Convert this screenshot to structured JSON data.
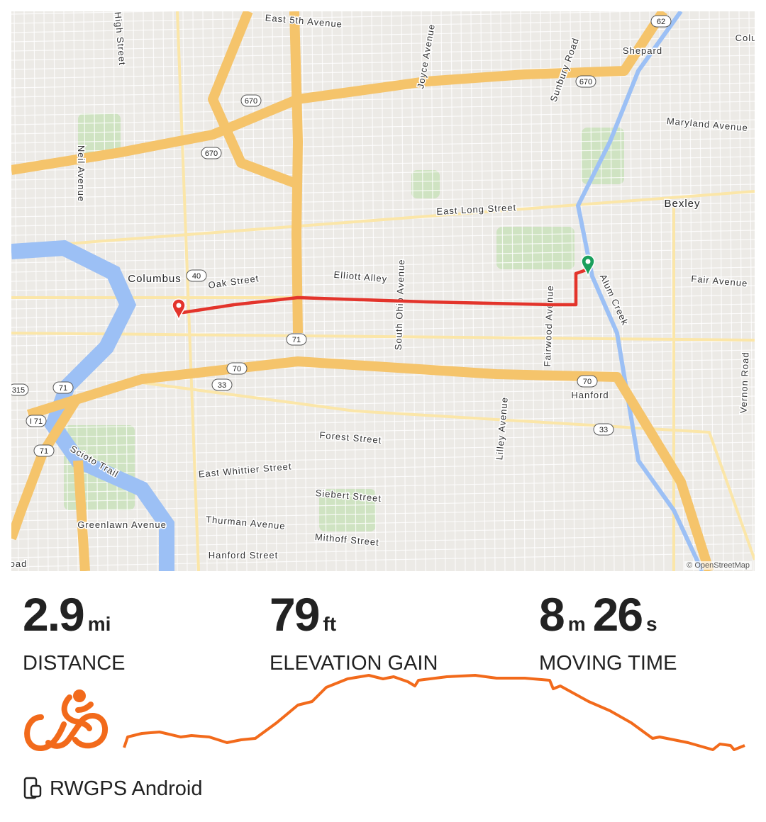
{
  "map": {
    "attribution": "© OpenStreetMap",
    "labels": [
      "East 5th Avenue",
      "High Street",
      "Joyce Avenue",
      "Sunbury Road",
      "Shepard",
      "Maryland Avenue",
      "Neil Avenue",
      "East Long Street",
      "Bexley",
      "Columbus",
      "Oak Street",
      "Elliott Alley",
      "South Ohio Avenue",
      "Fairwood Avenue",
      "Alum Creek",
      "Fair Avenue",
      "Hanford",
      "Vernon Road",
      "Lilley Avenue",
      "Forest Street",
      "Scioto Trail",
      "East Whittier Street",
      "Siebert Street",
      "Greenlawn Avenue",
      "Thurman Avenue",
      "Mithoff Street",
      "Hanford Street",
      "Colu",
      "oad"
    ],
    "shields": [
      "62",
      "670",
      "670",
      "670",
      "40",
      "71",
      "70",
      "33",
      "70",
      "33",
      "315",
      "71",
      "I 71",
      "71"
    ],
    "colors": {
      "route": "#e3342b",
      "start": "#1a9f5c",
      "end": "#e3342b",
      "highway": "#f5c46b",
      "water": "#9cc0f5",
      "park": "#cfe3c2"
    }
  },
  "stats": {
    "distance": {
      "value": "2.9",
      "unit": "mi",
      "label": "DISTANCE"
    },
    "elevation": {
      "value": "79",
      "unit": "ft",
      "label": "ELEVATION GAIN"
    },
    "moving_time": {
      "min": "8",
      "min_unit": "m",
      "sec": "26",
      "sec_unit": "s",
      "label": "MOVING TIME"
    }
  },
  "activity": {
    "type_icon": "cyclist-icon",
    "accent": "#f26a1b"
  },
  "device": {
    "icon": "phone-watch-icon",
    "name": "RWGPS Android"
  }
}
